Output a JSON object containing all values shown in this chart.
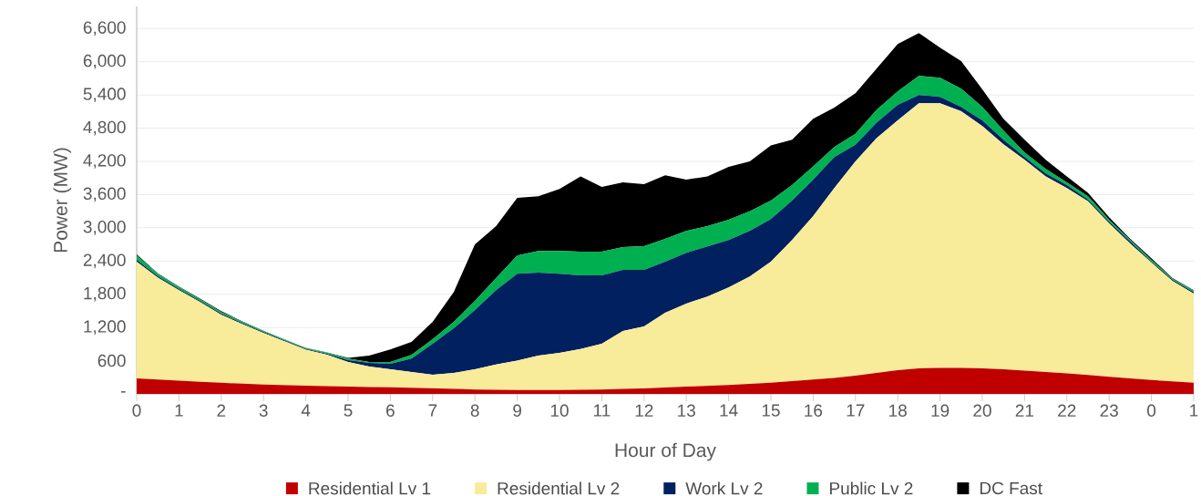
{
  "chart_data": {
    "type": "area",
    "stacked": true,
    "xlabel": "Hour of Day",
    "ylabel": "Power (MW)",
    "grid": "y",
    "legend": "bottom",
    "categories": [
      "0",
      null,
      "1",
      null,
      "2",
      null,
      "3",
      null,
      "4",
      null,
      "5",
      null,
      "6",
      null,
      "7",
      null,
      "8",
      null,
      "9",
      null,
      "10",
      null,
      "11",
      null,
      "12",
      null,
      "13",
      null,
      "14",
      null,
      "15",
      null,
      "16",
      null,
      "17",
      null,
      "18",
      null,
      "19",
      null,
      "20",
      null,
      "21",
      null,
      "22",
      null,
      "23",
      null,
      "0",
      null,
      "1"
    ],
    "ylim": [
      0,
      7000
    ],
    "yticks": [
      {
        "value": 0,
        "label": "-"
      },
      600,
      {
        "value": 1200,
        "label": "1,200"
      },
      {
        "value": 1800,
        "label": "1,800"
      },
      {
        "value": 2400,
        "label": "2,400"
      },
      {
        "value": 3000,
        "label": "3,000"
      },
      {
        "value": 3600,
        "label": "3,600"
      },
      {
        "value": 4200,
        "label": "4,200"
      },
      {
        "value": 4800,
        "label": "4,800"
      },
      {
        "value": 5400,
        "label": "5,400"
      },
      {
        "value": 6000,
        "label": "6,000"
      },
      {
        "value": 6600,
        "label": "6,600"
      }
    ],
    "series": [
      {
        "name": "Residential Lv 1",
        "color": "#c00000",
        "values": [
          280,
          260,
          240,
          220,
          200,
          185,
          170,
          160,
          150,
          140,
          130,
          125,
          120,
          110,
          100,
          90,
          80,
          75,
          70,
          70,
          70,
          75,
          80,
          90,
          100,
          115,
          130,
          145,
          160,
          180,
          200,
          230,
          260,
          290,
          330,
          380,
          430,
          460,
          470,
          470,
          460,
          445,
          420,
          395,
          370,
          340,
          310,
          280,
          250,
          225,
          200
        ]
      },
      {
        "name": "Residential Lv 2",
        "color": "#f8eb9a",
        "values": [
          2110,
          1840,
          1635,
          1440,
          1230,
          1075,
          930,
          790,
          650,
          570,
          445,
          370,
          325,
          285,
          245,
          290,
          365,
          455,
          530,
          620,
          670,
          735,
          825,
          1045,
          1120,
          1350,
          1500,
          1615,
          1765,
          1940,
          2190,
          2550,
          2950,
          3430,
          3870,
          4240,
          4510,
          4790,
          4780,
          4635,
          4380,
          4065,
          3810,
          3535,
          3350,
          3140,
          2770,
          2435,
          2120,
          1815,
          1610
        ]
      },
      {
        "name": "Work Lv 2",
        "color": "#002060",
        "values": [
          30,
          25,
          20,
          20,
          20,
          15,
          15,
          12,
          12,
          15,
          35,
          65,
          100,
          245,
          560,
          805,
          1070,
          1345,
          1570,
          1500,
          1430,
          1330,
          1235,
          1105,
          1020,
          925,
          920,
          905,
          855,
          825,
          770,
          710,
          660,
          560,
          300,
          280,
          280,
          150,
          115,
          80,
          100,
          80,
          50,
          50,
          50,
          30,
          30,
          35,
          20,
          20,
          25
        ]
      },
      {
        "name": "Public Lv 2",
        "color": "#00b050",
        "values": [
          80,
          45,
          35,
          30,
          30,
          25,
          20,
          18,
          16,
          20,
          30,
          15,
          30,
          65,
          85,
          115,
          165,
          215,
          330,
          390,
          410,
          430,
          430,
          410,
          430,
          410,
          395,
          365,
          365,
          355,
          330,
          280,
          240,
          180,
          200,
          230,
          245,
          345,
          345,
          330,
          245,
          165,
          80,
          85,
          50,
          60,
          35,
          30,
          30,
          20,
          30
        ]
      },
      {
        "name": "DC Fast",
        "color": "#000000",
        "values": [
          20,
          10,
          10,
          10,
          15,
          10,
          5,
          5,
          4,
          5,
          10,
          115,
          230,
          235,
          310,
          540,
          1020,
          940,
          1040,
          990,
          1120,
          1360,
          1170,
          1170,
          1120,
          1150,
          925,
          900,
          955,
          900,
          1000,
          820,
          860,
          710,
          730,
          745,
          855,
          775,
          545,
          495,
          315,
          215,
          230,
          165,
          110,
          60,
          45,
          20,
          30,
          10,
          10
        ]
      }
    ]
  }
}
